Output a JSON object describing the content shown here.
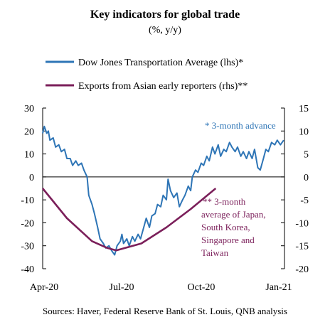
{
  "chart_data": {
    "type": "line",
    "title": "Key indicators for global trade",
    "subtitle": "(%, y/y)",
    "source": "Sources: Haver, Federal Reserve Bank of St. Louis, QNB analysis",
    "x_ticks": [
      "Apr-20",
      "Jul-20",
      "Oct-20",
      "Jan-21"
    ],
    "x_range": [
      "2020-04-01",
      "2021-01-25"
    ],
    "y_left": {
      "min": -40,
      "max": 30,
      "ticks": [
        30,
        20,
        10,
        0,
        -10,
        -20,
        -30,
        -40
      ]
    },
    "y_right": {
      "min": -20,
      "max": 15,
      "ticks": [
        15,
        10,
        5,
        0,
        -5,
        -10,
        -15,
        -20
      ]
    },
    "grid": false,
    "legend_position": "top",
    "series": [
      {
        "name": "Dow Jones Transportation Average (lhs)*",
        "axis": "left",
        "color": "#2e75b6",
        "points": [
          [
            "2020-04-01",
            19
          ],
          [
            "2020-04-03",
            22
          ],
          [
            "2020-04-06",
            19
          ],
          [
            "2020-04-08",
            20
          ],
          [
            "2020-04-10",
            16
          ],
          [
            "2020-04-14",
            17
          ],
          [
            "2020-04-17",
            13
          ],
          [
            "2020-04-21",
            14
          ],
          [
            "2020-04-24",
            11
          ],
          [
            "2020-04-28",
            12
          ],
          [
            "2020-05-01",
            8
          ],
          [
            "2020-05-05",
            8
          ],
          [
            "2020-05-08",
            5
          ],
          [
            "2020-05-12",
            7
          ],
          [
            "2020-05-15",
            5
          ],
          [
            "2020-05-19",
            6
          ],
          [
            "2020-05-22",
            3
          ],
          [
            "2020-05-26",
            0
          ],
          [
            "2020-05-28",
            -8
          ],
          [
            "2020-06-01",
            -12
          ],
          [
            "2020-06-04",
            -16
          ],
          [
            "2020-06-08",
            -22
          ],
          [
            "2020-06-11",
            -27
          ],
          [
            "2020-06-15",
            -29
          ],
          [
            "2020-06-18",
            -31
          ],
          [
            "2020-06-22",
            -30
          ],
          [
            "2020-06-25",
            -32
          ],
          [
            "2020-06-29",
            -34
          ],
          [
            "2020-07-02",
            -30
          ],
          [
            "2020-07-06",
            -28
          ],
          [
            "2020-07-08",
            -25
          ],
          [
            "2020-07-10",
            -29
          ],
          [
            "2020-07-14",
            -27
          ],
          [
            "2020-07-17",
            -30
          ],
          [
            "2020-07-21",
            -26
          ],
          [
            "2020-07-24",
            -28
          ],
          [
            "2020-07-28",
            -25
          ],
          [
            "2020-07-31",
            -27
          ],
          [
            "2020-08-04",
            -22
          ],
          [
            "2020-08-07",
            -18
          ],
          [
            "2020-08-11",
            -22
          ],
          [
            "2020-08-14",
            -17
          ],
          [
            "2020-08-18",
            -16
          ],
          [
            "2020-08-21",
            -12
          ],
          [
            "2020-08-25",
            -13
          ],
          [
            "2020-08-28",
            -8
          ],
          [
            "2020-09-01",
            -10
          ],
          [
            "2020-09-03",
            -1
          ],
          [
            "2020-09-06",
            -6
          ],
          [
            "2020-09-10",
            -9
          ],
          [
            "2020-09-14",
            -7
          ],
          [
            "2020-09-17",
            -13
          ],
          [
            "2020-09-21",
            -10
          ],
          [
            "2020-09-24",
            -8
          ],
          [
            "2020-09-28",
            -4
          ],
          [
            "2020-10-01",
            -6
          ],
          [
            "2020-10-03",
            0
          ],
          [
            "2020-10-07",
            3
          ],
          [
            "2020-10-10",
            2
          ],
          [
            "2020-10-14",
            6
          ],
          [
            "2020-10-17",
            5
          ],
          [
            "2020-10-21",
            9
          ],
          [
            "2020-10-24",
            7
          ],
          [
            "2020-10-28",
            13
          ],
          [
            "2020-10-31",
            10
          ],
          [
            "2020-11-04",
            14
          ],
          [
            "2020-11-07",
            9
          ],
          [
            "2020-11-11",
            12
          ],
          [
            "2020-11-14",
            11
          ],
          [
            "2020-11-18",
            15
          ],
          [
            "2020-11-21",
            13
          ],
          [
            "2020-11-25",
            11
          ],
          [
            "2020-11-28",
            13
          ],
          [
            "2020-12-02",
            9
          ],
          [
            "2020-12-05",
            11
          ],
          [
            "2020-12-09",
            8
          ],
          [
            "2020-12-12",
            11
          ],
          [
            "2020-12-16",
            8
          ],
          [
            "2020-12-19",
            12
          ],
          [
            "2020-12-23",
            4
          ],
          [
            "2020-12-26",
            3
          ],
          [
            "2020-12-30",
            8
          ],
          [
            "2021-01-02",
            12
          ],
          [
            "2021-01-05",
            11
          ],
          [
            "2021-01-09",
            15
          ],
          [
            "2021-01-13",
            14
          ],
          [
            "2021-01-16",
            16
          ],
          [
            "2021-01-20",
            14
          ],
          [
            "2021-01-24",
            16
          ]
        ]
      },
      {
        "name": "Exports from Asian early reporters (rhs)**",
        "axis": "right",
        "color": "#7b1f5a",
        "points": [
          [
            "2020-04-01",
            -2.5
          ],
          [
            "2020-05-01",
            -9.0
          ],
          [
            "2020-06-01",
            -14.0
          ],
          [
            "2020-06-20",
            -15.5
          ],
          [
            "2020-07-01",
            -16.0
          ],
          [
            "2020-08-01",
            -14.5
          ],
          [
            "2020-09-01",
            -11.0
          ],
          [
            "2020-10-01",
            -7.0
          ],
          [
            "2020-11-01",
            -2.5
          ]
        ]
      }
    ],
    "annotations": [
      {
        "id": "blue",
        "text": [
          "* 3-month advance"
        ]
      },
      {
        "id": "purple",
        "text": [
          "** 3-month",
          "average of Japan,",
          "South Korea,",
          "Singapore and",
          "Taiwan"
        ]
      }
    ]
  }
}
